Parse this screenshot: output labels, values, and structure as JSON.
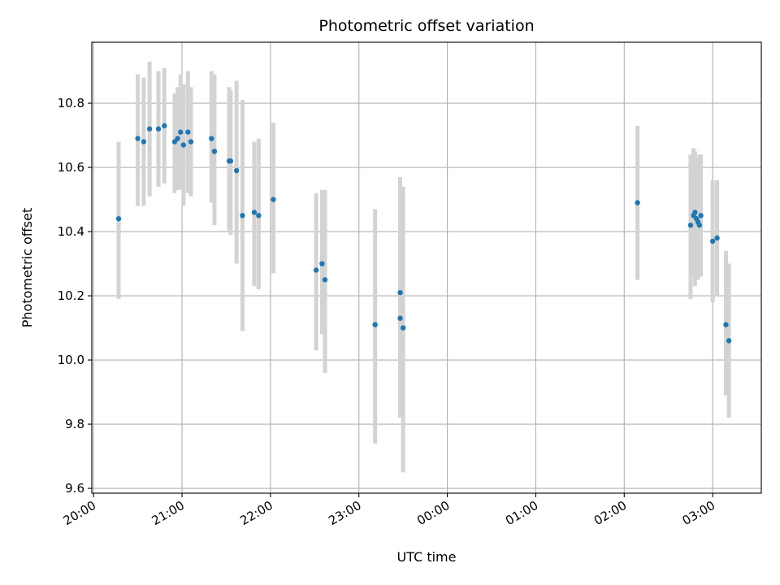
{
  "chart_data": {
    "type": "scatter",
    "title": "Photometric offset variation",
    "xlabel": "UTC time",
    "ylabel": "Photometric offset",
    "x_unit": "hours since 20:00 UTC",
    "xlim": [
      -0.02,
      7.55
    ],
    "ylim": [
      9.585,
      10.99
    ],
    "x_ticks": [
      {
        "value": 0,
        "label": "20:00"
      },
      {
        "value": 1,
        "label": "21:00"
      },
      {
        "value": 2,
        "label": "22:00"
      },
      {
        "value": 3,
        "label": "23:00"
      },
      {
        "value": 4,
        "label": "00:00"
      },
      {
        "value": 5,
        "label": "01:00"
      },
      {
        "value": 6,
        "label": "02:00"
      },
      {
        "value": 7,
        "label": "03:00"
      }
    ],
    "y_ticks": [
      9.6,
      9.8,
      10.0,
      10.2,
      10.4,
      10.6,
      10.8
    ],
    "y_tick_labels": [
      "9.6",
      "9.8",
      "10.0",
      "10.2",
      "10.4",
      "10.6",
      "10.8"
    ],
    "grid": true,
    "colors": {
      "marker": "#1f77b4",
      "errorbar": "#d3d3d3",
      "grid": "#b0b0b0"
    },
    "points": [
      {
        "time": "20:17",
        "y": 10.44,
        "lo": 10.19,
        "hi": 10.68
      },
      {
        "time": "20:30",
        "y": 10.69,
        "lo": 10.48,
        "hi": 10.89
      },
      {
        "time": "20:34",
        "y": 10.68,
        "lo": 10.48,
        "hi": 10.88
      },
      {
        "time": "20:38",
        "y": 10.72,
        "lo": 10.51,
        "hi": 10.93
      },
      {
        "time": "20:44",
        "y": 10.72,
        "lo": 10.54,
        "hi": 10.9
      },
      {
        "time": "20:48",
        "y": 10.73,
        "lo": 10.55,
        "hi": 10.91
      },
      {
        "time": "20:55",
        "y": 10.68,
        "lo": 10.52,
        "hi": 10.83
      },
      {
        "time": "20:57",
        "y": 10.69,
        "lo": 10.53,
        "hi": 10.85
      },
      {
        "time": "20:59",
        "y": 10.71,
        "lo": 10.53,
        "hi": 10.89
      },
      {
        "time": "21:01",
        "y": 10.67,
        "lo": 10.48,
        "hi": 10.86
      },
      {
        "time": "21:04",
        "y": 10.71,
        "lo": 10.52,
        "hi": 10.9
      },
      {
        "time": "21:06",
        "y": 10.68,
        "lo": 10.51,
        "hi": 10.85
      },
      {
        "time": "21:20",
        "y": 10.69,
        "lo": 10.49,
        "hi": 10.9
      },
      {
        "time": "21:22",
        "y": 10.65,
        "lo": 10.42,
        "hi": 10.89
      },
      {
        "time": "21:32",
        "y": 10.62,
        "lo": 10.4,
        "hi": 10.85
      },
      {
        "time": "21:33",
        "y": 10.62,
        "lo": 10.39,
        "hi": 10.84
      },
      {
        "time": "21:37",
        "y": 10.59,
        "lo": 10.3,
        "hi": 10.87
      },
      {
        "time": "21:41",
        "y": 10.45,
        "lo": 10.09,
        "hi": 10.81
      },
      {
        "time": "21:49",
        "y": 10.46,
        "lo": 10.23,
        "hi": 10.68
      },
      {
        "time": "21:52",
        "y": 10.45,
        "lo": 10.22,
        "hi": 10.69
      },
      {
        "time": "22:02",
        "y": 10.5,
        "lo": 10.27,
        "hi": 10.74
      },
      {
        "time": "22:31",
        "y": 10.28,
        "lo": 10.03,
        "hi": 10.52
      },
      {
        "time": "22:35",
        "y": 10.3,
        "lo": 10.08,
        "hi": 10.53
      },
      {
        "time": "22:37",
        "y": 10.25,
        "lo": 9.96,
        "hi": 10.53
      },
      {
        "time": "23:11",
        "y": 10.11,
        "lo": 9.74,
        "hi": 10.47
      },
      {
        "time": "23:28",
        "y": 10.13,
        "lo": 9.82,
        "hi": 10.45
      },
      {
        "time": "23:28",
        "y": 10.21,
        "lo": 9.85,
        "hi": 10.57
      },
      {
        "time": "23:30",
        "y": 10.1,
        "lo": 9.65,
        "hi": 10.54
      },
      {
        "time": "02:09",
        "y": 10.49,
        "lo": 10.25,
        "hi": 10.73
      },
      {
        "time": "02:45",
        "y": 10.42,
        "lo": 10.19,
        "hi": 10.64
      },
      {
        "time": "02:47",
        "y": 10.45,
        "lo": 10.26,
        "hi": 10.66
      },
      {
        "time": "02:48",
        "y": 10.46,
        "lo": 10.23,
        "hi": 10.65
      },
      {
        "time": "02:49",
        "y": 10.44,
        "lo": 10.25,
        "hi": 10.63
      },
      {
        "time": "02:50",
        "y": 10.43,
        "lo": 10.25,
        "hi": 10.62
      },
      {
        "time": "02:51",
        "y": 10.42,
        "lo": 10.26,
        "hi": 10.64
      },
      {
        "time": "02:52",
        "y": 10.45,
        "lo": 10.26,
        "hi": 10.64
      },
      {
        "time": "03:00",
        "y": 10.37,
        "lo": 10.18,
        "hi": 10.56
      },
      {
        "time": "03:03",
        "y": 10.38,
        "lo": 10.2,
        "hi": 10.56
      },
      {
        "time": "03:09",
        "y": 10.11,
        "lo": 9.89,
        "hi": 10.34
      },
      {
        "time": "03:11",
        "y": 10.06,
        "lo": 9.82,
        "hi": 10.3
      }
    ]
  }
}
